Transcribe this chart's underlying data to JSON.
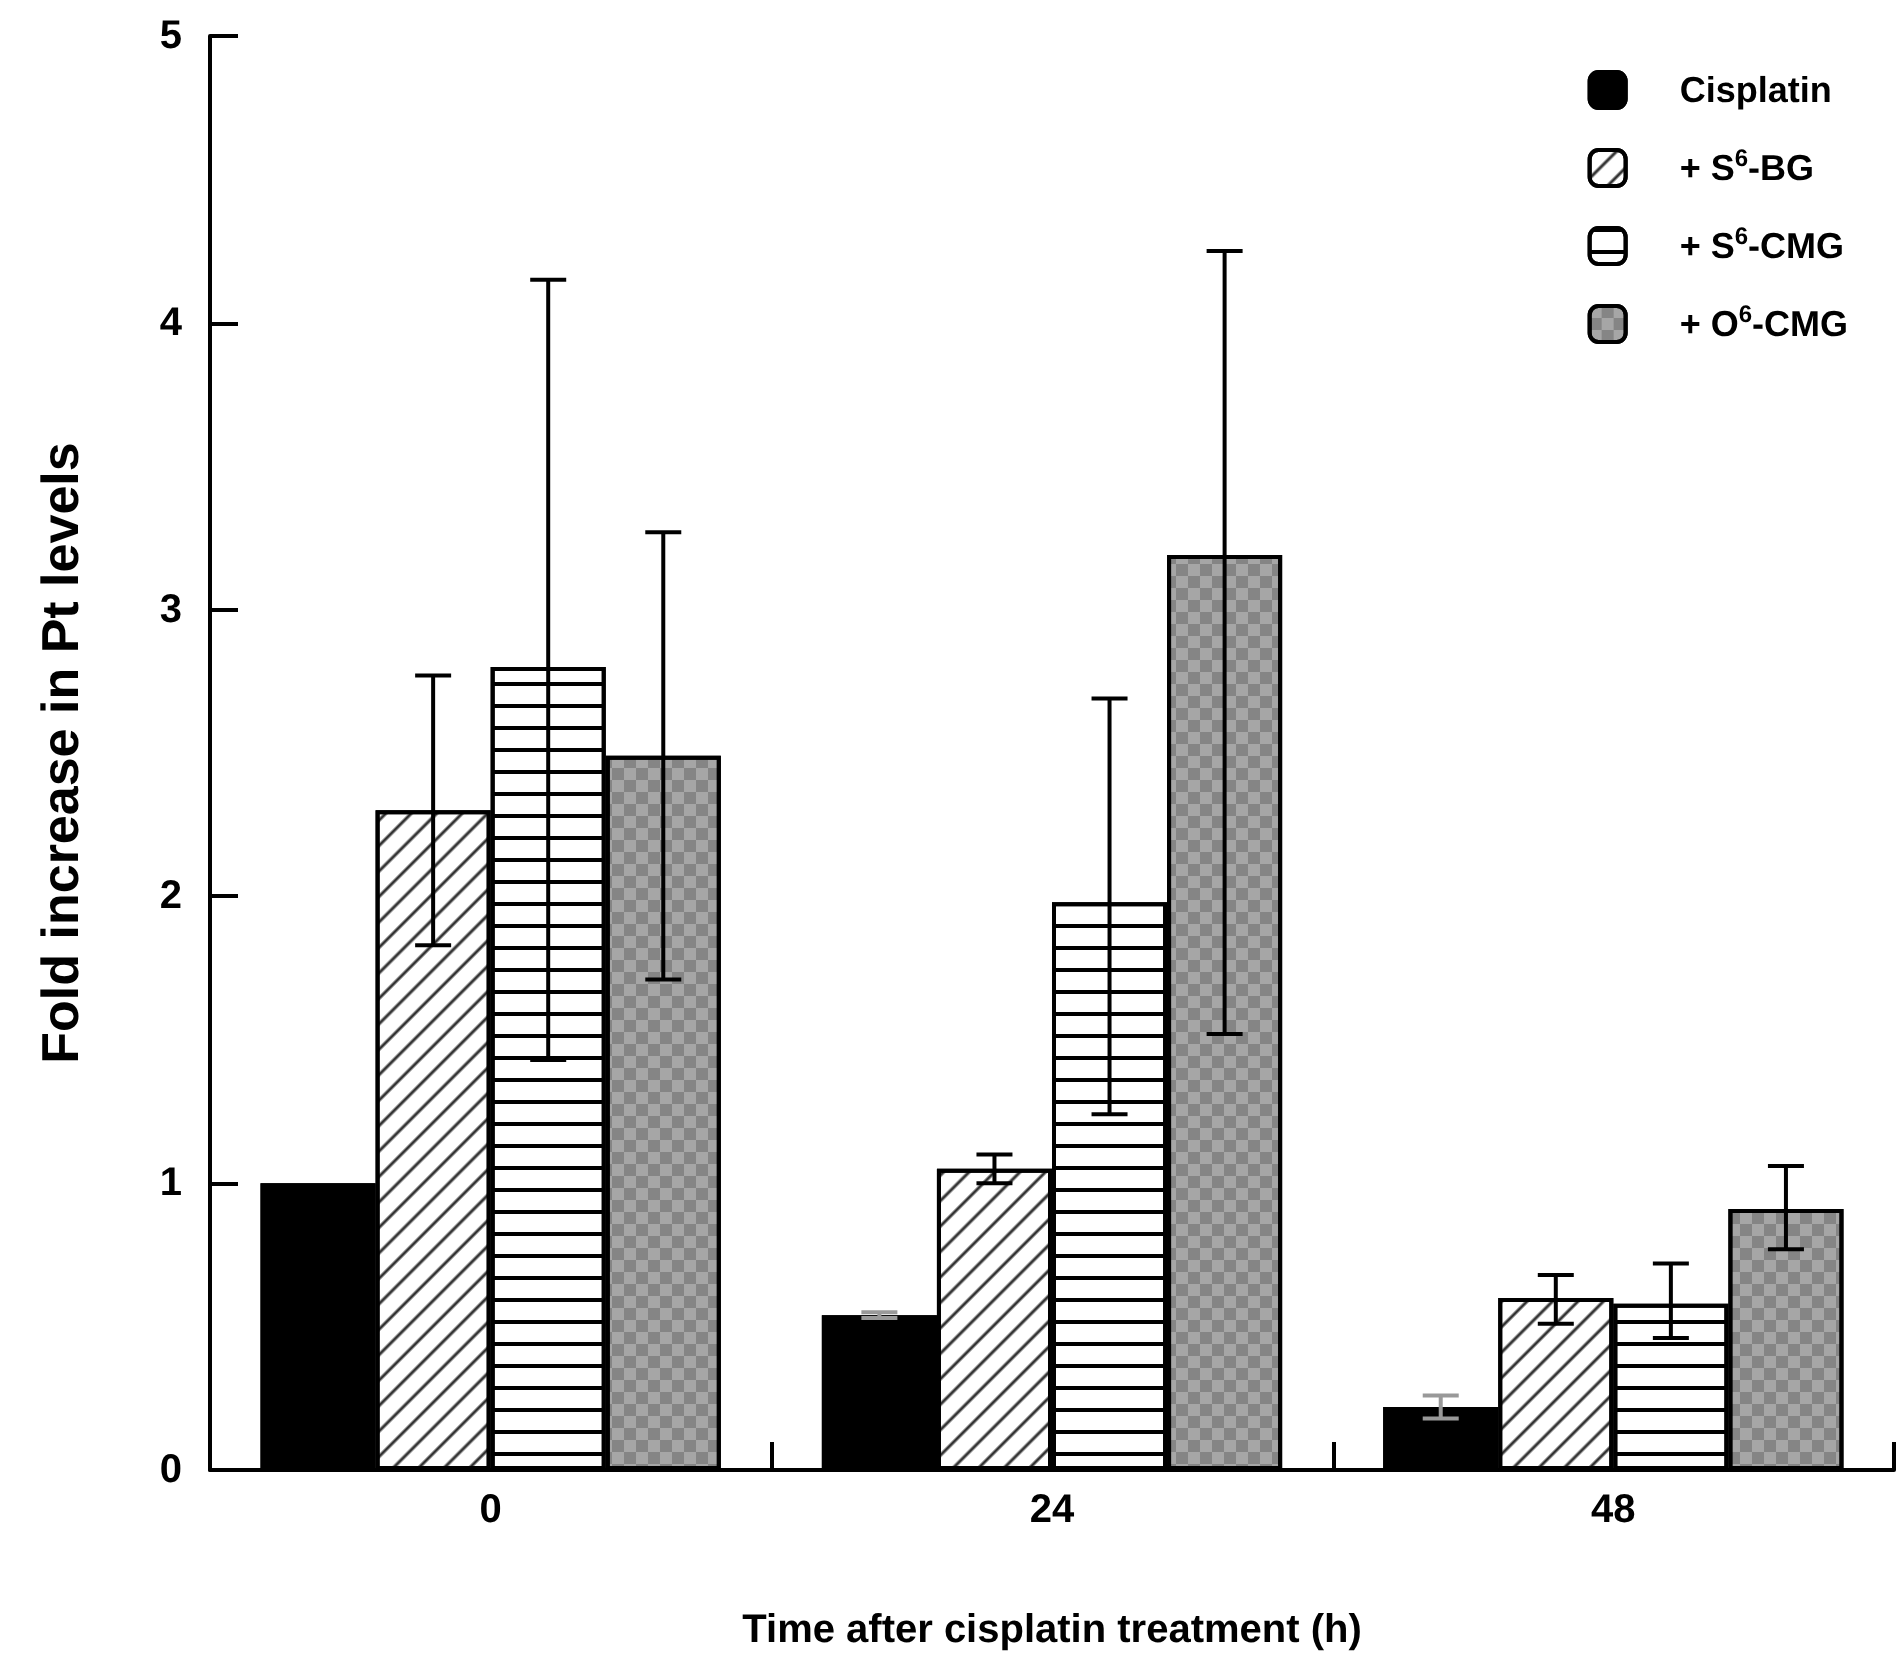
{
  "chart_data": {
    "type": "bar",
    "xlabel": "Time after cisplatin treatment (h)",
    "ylabel": "Fold increase in Pt levels",
    "categories": [
      "0",
      "24",
      "48"
    ],
    "series": [
      {
        "name": "Cisplatin",
        "color": "#000000",
        "values": [
          1.0,
          0.54,
          0.22
        ],
        "errors": [
          null,
          0.01,
          0.04
        ]
      },
      {
        "name": "+ S$^{6}$-BG",
        "color": "#ffffff",
        "values": [
          2.3,
          1.05,
          0.6
        ],
        "errors": [
          [
            1.83,
            2.77
          ],
          [
            1.0,
            1.1
          ],
          [
            0.51,
            0.68
          ]
        ]
      },
      {
        "name": "+ S$^{6}$-CMG",
        "color": "#ffffff",
        "values": [
          2.8,
          1.98,
          0.58
        ],
        "errors": [
          [
            1.43,
            4.15
          ],
          [
            1.24,
            2.69
          ],
          [
            0.46,
            0.72
          ]
        ]
      },
      {
        "name": "+ O$^{6}$-CMG",
        "color": "#a6a6a6",
        "values": [
          2.49,
          3.19,
          0.91
        ],
        "errors": [
          [
            1.71,
            3.27
          ],
          [
            1.52,
            4.25
          ],
          [
            0.77,
            1.06
          ]
        ]
      }
    ],
    "ylim": [
      0,
      5
    ],
    "yticks": [
      0,
      1,
      2,
      3,
      4,
      5
    ],
    "grid": false,
    "legend": "top right"
  }
}
